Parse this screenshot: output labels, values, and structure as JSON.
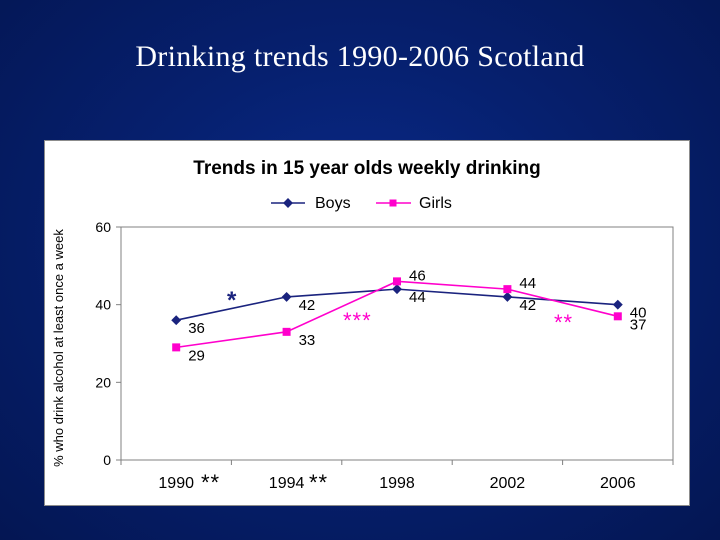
{
  "slide": {
    "title": "Drinking trends 1990-2006 Scotland"
  },
  "chart_data": {
    "type": "line",
    "title": "Trends in 15 year olds weekly drinking",
    "xlabel": "",
    "ylabel": "% who drink alcohol at least once a week",
    "categories": [
      "1990",
      "1994",
      "1998",
      "2002",
      "2006"
    ],
    "ylim": [
      0,
      60
    ],
    "yticks": [
      "0",
      "20",
      "40",
      "60"
    ],
    "grid": false,
    "legend": "top",
    "series": [
      {
        "name": "Boys",
        "values": [
          36,
          42,
          44,
          42,
          40
        ],
        "color": "#1a237e",
        "marker": "diamond"
      },
      {
        "name": "Girls",
        "values": [
          29,
          33,
          46,
          44,
          37
        ],
        "color": "#ff00cc",
        "marker": "square"
      }
    ],
    "annotations": [
      {
        "text": "*",
        "color": "#1a237e"
      },
      {
        "text": "***",
        "color": "#ff00cc"
      },
      {
        "text": "**",
        "color": "#ff00cc"
      },
      {
        "text": "**",
        "color": "#000000"
      },
      {
        "text": "**",
        "color": "#000000"
      }
    ]
  }
}
